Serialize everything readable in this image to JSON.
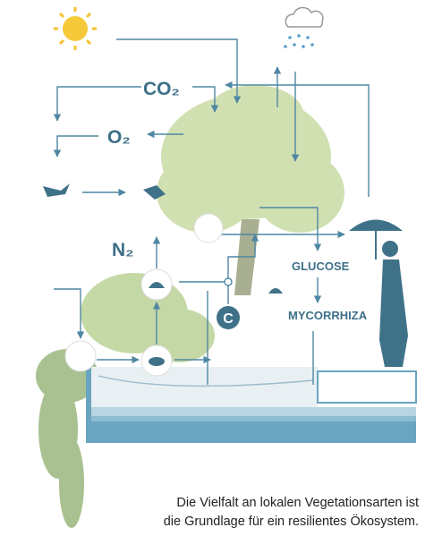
{
  "labels": {
    "co2": "CO₂",
    "o2": "O₂",
    "n2": "N₂",
    "carbon": "C",
    "glucose": "GLUCOSE",
    "mycorrhiza": "MYCORRHIZA"
  },
  "caption": {
    "lines": [
      "Die Vielfalt an lokalen Vegetationsarten ist",
      "die Grundlage für ein resilientes Ökosystem."
    ]
  }
}
